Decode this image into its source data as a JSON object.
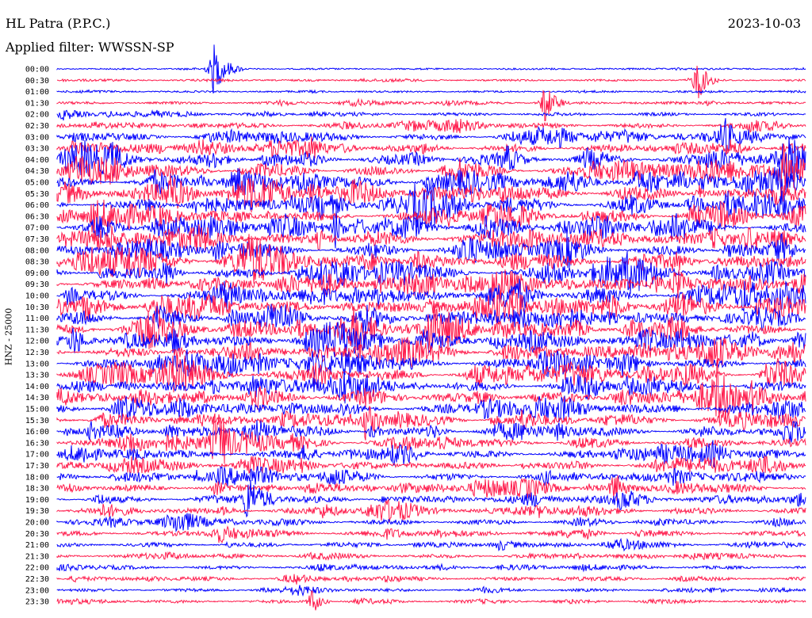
{
  "header": {
    "station": "HL Patra (P.P.C.)",
    "date": "2023-10-03",
    "filter": "Applied filter: WWSSN-SP"
  },
  "chart_data": {
    "type": "line",
    "title": "HL Patra (P.P.C.)",
    "subtitle": "Applied filter: WWSSN-SP",
    "ylabel": "HNZ - 25000",
    "row_labels": [
      "00:00",
      "00:30",
      "01:00",
      "01:30",
      "02:00",
      "02:30",
      "03:00",
      "03:30",
      "04:00",
      "04:30",
      "05:00",
      "05:30",
      "06:00",
      "06:30",
      "07:00",
      "07:30",
      "08:00",
      "08:30",
      "09:00",
      "09:30",
      "10:00",
      "10:30",
      "11:00",
      "11:30",
      "12:00",
      "12:30",
      "13:00",
      "13:30",
      "14:00",
      "14:30",
      "15:00",
      "15:30",
      "16:00",
      "16:30",
      "17:00",
      "17:30",
      "18:00",
      "18:30",
      "19:00",
      "19:30",
      "20:00",
      "20:30",
      "21:00",
      "21:30",
      "22:00",
      "22:30",
      "23:00",
      "23:30"
    ],
    "colors": [
      "#0000ff",
      "#ff1a4b"
    ],
    "activity_relative": [
      0.08,
      0.12,
      0.12,
      0.2,
      0.3,
      0.45,
      0.6,
      0.8,
      1.0,
      1.0,
      1.0,
      1.0,
      1.0,
      1.0,
      1.0,
      1.0,
      1.0,
      1.0,
      1.0,
      1.0,
      1.0,
      1.0,
      1.0,
      1.0,
      1.0,
      1.0,
      1.0,
      1.0,
      0.95,
      0.9,
      0.9,
      0.85,
      0.8,
      0.8,
      0.75,
      0.7,
      0.7,
      0.65,
      0.6,
      0.55,
      0.5,
      0.45,
      0.4,
      0.35,
      0.3,
      0.28,
      0.25,
      0.25
    ]
  }
}
